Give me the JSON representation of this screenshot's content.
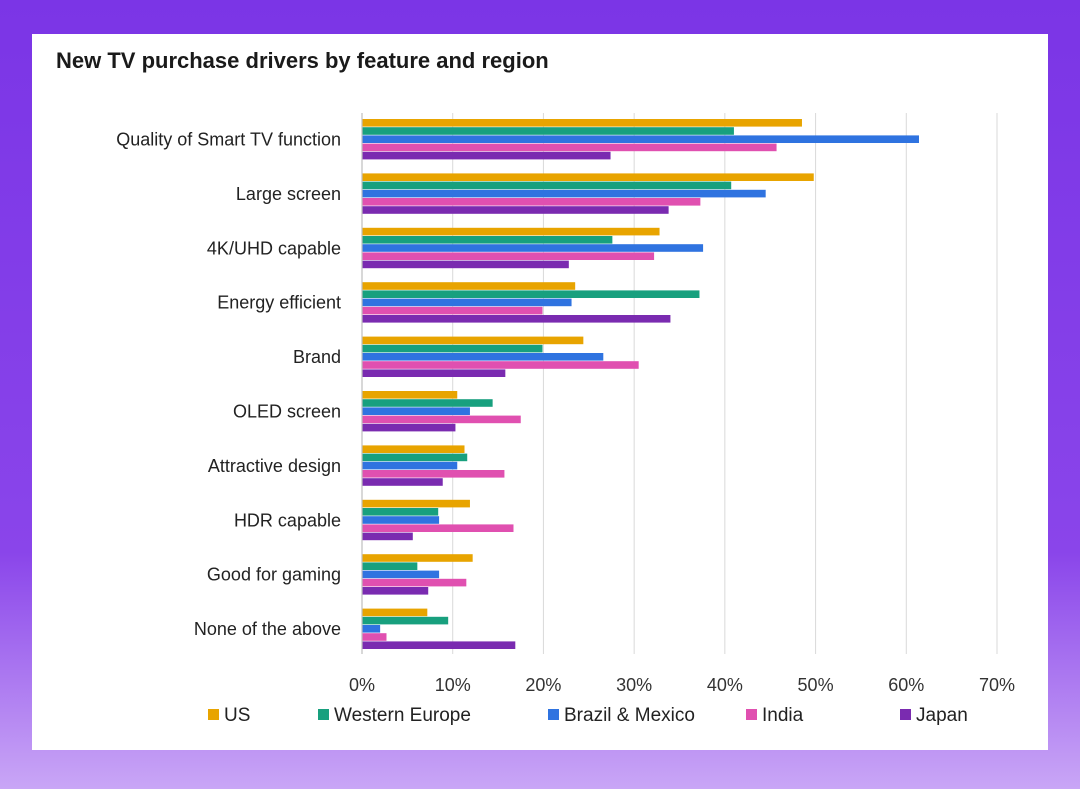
{
  "chart_data": {
    "type": "bar",
    "orientation": "horizontal",
    "title": "New TV purchase drivers by feature and region",
    "xlabel": "",
    "ylabel": "",
    "xlim": [
      0,
      70
    ],
    "x_ticks": [
      "0%",
      "10%",
      "20%",
      "30%",
      "40%",
      "50%",
      "60%",
      "70%"
    ],
    "grid": true,
    "legend_position": "bottom",
    "categories": [
      "Quality of Smart TV function",
      "Large screen",
      "4K/UHD capable",
      "Energy efficient",
      "Brand",
      "OLED screen",
      "Attractive design",
      "HDR capable",
      "Good for gaming",
      "None of the above"
    ],
    "series": [
      {
        "name": "US",
        "color": "#e8a400",
        "values": [
          48.5,
          49.8,
          32.8,
          23.5,
          24.4,
          10.5,
          11.3,
          11.9,
          12.2,
          7.2
        ]
      },
      {
        "name": "Western Europe",
        "color": "#18a07e",
        "values": [
          41.0,
          40.7,
          27.6,
          37.2,
          19.9,
          14.4,
          11.6,
          8.4,
          6.1,
          9.5
        ]
      },
      {
        "name": "Brazil & Mexico",
        "color": "#2f73e0",
        "values": [
          61.4,
          44.5,
          37.6,
          23.1,
          26.6,
          11.9,
          10.5,
          8.5,
          8.5,
          2.0
        ]
      },
      {
        "name": "India",
        "color": "#e050b0",
        "values": [
          45.7,
          37.3,
          32.2,
          19.9,
          30.5,
          17.5,
          15.7,
          16.7,
          11.5,
          2.7
        ]
      },
      {
        "name": "Japan",
        "color": "#7a2bb0",
        "values": [
          27.4,
          33.8,
          22.8,
          34.0,
          15.8,
          10.3,
          8.9,
          5.6,
          7.3,
          16.9
        ]
      }
    ]
  }
}
